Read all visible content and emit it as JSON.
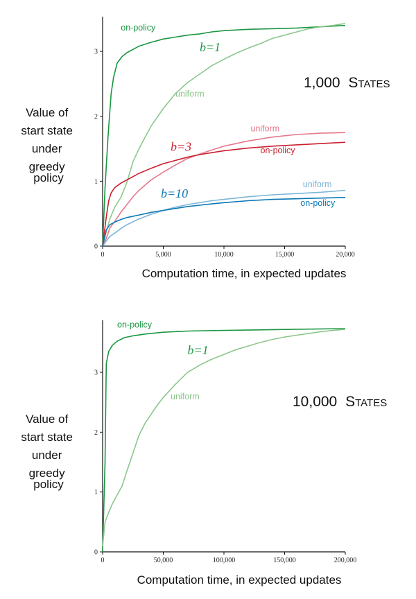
{
  "chart_data": [
    {
      "type": "line",
      "title_number": "1,000",
      "title_caps": "States",
      "xlabel": "Computation time, in expected updates",
      "ylabel_lines": [
        "Value of",
        "start state",
        "under",
        "greedy",
        "policy"
      ],
      "xlim": [
        0,
        20000
      ],
      "ylim": [
        0,
        3.45
      ],
      "xticks": [
        0,
        5000,
        10000,
        15000,
        20000
      ],
      "xtick_labels": [
        "0",
        "5,000",
        "10,000",
        "15,000",
        "20,000"
      ],
      "yticks": [
        0,
        1,
        2,
        3
      ],
      "ytick_labels": [
        "0",
        "1",
        "2",
        "3"
      ],
      "series": [
        {
          "name": "on-policy",
          "b": "b=1",
          "color": "#1a9641",
          "x": [
            0,
            200,
            450,
            700,
            900,
            1200,
            1600,
            2000,
            2500,
            3000,
            3500,
            4000,
            5000,
            6000,
            7000,
            8000,
            9000,
            10000,
            12000,
            14000,
            16000,
            18000,
            20000
          ],
          "y": [
            0,
            0.9,
            1.7,
            2.35,
            2.6,
            2.82,
            2.92,
            2.98,
            3.03,
            3.08,
            3.11,
            3.14,
            3.19,
            3.22,
            3.25,
            3.27,
            3.3,
            3.32,
            3.34,
            3.35,
            3.36,
            3.38,
            3.4
          ]
        },
        {
          "name": "uniform",
          "b": "b=1",
          "color": "#8cc68c",
          "x": [
            0,
            300,
            600,
            1000,
            1500,
            2000,
            2500,
            3000,
            3500,
            4000,
            5000,
            6000,
            7000,
            8000,
            9000,
            10000,
            11000,
            12000,
            13000,
            14000,
            15000,
            16000,
            17000,
            18000,
            19000,
            20000
          ],
          "y": [
            0,
            0.22,
            0.42,
            0.6,
            0.75,
            0.98,
            1.3,
            1.5,
            1.68,
            1.85,
            2.12,
            2.35,
            2.52,
            2.65,
            2.78,
            2.88,
            2.97,
            3.05,
            3.12,
            3.2,
            3.25,
            3.3,
            3.35,
            3.38,
            3.4,
            3.43
          ]
        },
        {
          "name": "uniform",
          "b": "b=3",
          "color": "#e5788a",
          "x": [
            0,
            300,
            600,
            1000,
            1500,
            2000,
            2500,
            3000,
            4000,
            5000,
            6000,
            7000,
            8000,
            9000,
            10000,
            12000,
            14000,
            16000,
            18000,
            20000
          ],
          "y": [
            0,
            0.12,
            0.28,
            0.38,
            0.52,
            0.64,
            0.76,
            0.86,
            1.02,
            1.14,
            1.25,
            1.35,
            1.42,
            1.48,
            1.54,
            1.62,
            1.68,
            1.72,
            1.74,
            1.75
          ]
        },
        {
          "name": "on-policy",
          "b": "b=3",
          "color": "#c8202e",
          "x": [
            0,
            300,
            500,
            700,
            1000,
            1500,
            2000,
            2500,
            3000,
            4000,
            5000,
            6000,
            7000,
            8000,
            9000,
            10000,
            12000,
            14000,
            16000,
            18000,
            20000
          ],
          "y": [
            0,
            0.45,
            0.7,
            0.82,
            0.9,
            0.97,
            1.02,
            1.07,
            1.12,
            1.2,
            1.27,
            1.32,
            1.37,
            1.41,
            1.44,
            1.47,
            1.51,
            1.54,
            1.56,
            1.58,
            1.6
          ]
        },
        {
          "name": "uniform",
          "b": "b=10",
          "color": "#7db5d9",
          "x": [
            0,
            300,
            600,
            1000,
            1500,
            2000,
            3000,
            4000,
            5000,
            6000,
            7000,
            8000,
            9000,
            10000,
            12000,
            14000,
            16000,
            18000,
            20000
          ],
          "y": [
            0,
            0.08,
            0.15,
            0.2,
            0.27,
            0.33,
            0.42,
            0.49,
            0.55,
            0.6,
            0.64,
            0.67,
            0.7,
            0.72,
            0.76,
            0.79,
            0.81,
            0.83,
            0.86
          ]
        },
        {
          "name": "on-policy",
          "b": "b=10",
          "color": "#0b78b4",
          "x": [
            0,
            300,
            600,
            1000,
            1500,
            2000,
            3000,
            4000,
            5000,
            6000,
            7000,
            8000,
            9000,
            10000,
            12000,
            14000,
            16000,
            18000,
            20000
          ],
          "y": [
            0,
            0.25,
            0.33,
            0.37,
            0.41,
            0.44,
            0.48,
            0.52,
            0.55,
            0.58,
            0.61,
            0.63,
            0.65,
            0.67,
            0.7,
            0.72,
            0.73,
            0.74,
            0.75
          ]
        }
      ],
      "annotations": [
        {
          "text": "on-policy",
          "color": "#1a9641",
          "x": 1500,
          "y": 3.32,
          "kind": "series"
        },
        {
          "text": "b=1",
          "color": "#1a9641",
          "x": 8000,
          "y": 3.0,
          "kind": "b"
        },
        {
          "text": "uniform",
          "color": "#8cc68c",
          "x": 6000,
          "y": 2.3,
          "kind": "series"
        },
        {
          "text": "uniform",
          "color": "#e5788a",
          "x": 12200,
          "y": 1.77,
          "kind": "series"
        },
        {
          "text": "b=3",
          "color": "#c8202e",
          "x": 5600,
          "y": 1.47,
          "kind": "b"
        },
        {
          "text": "on-policy",
          "color": "#c8202e",
          "x": 13000,
          "y": 1.43,
          "kind": "series"
        },
        {
          "text": "uniform",
          "color": "#7db5d9",
          "x": 16500,
          "y": 0.91,
          "kind": "series"
        },
        {
          "text": "b=10",
          "color": "#0b78b4",
          "x": 4800,
          "y": 0.75,
          "kind": "b"
        },
        {
          "text": "on-policy",
          "color": "#0b78b4",
          "x": 16300,
          "y": 0.62,
          "kind": "series"
        }
      ]
    },
    {
      "type": "line",
      "title_number": "10,000",
      "title_caps": "States",
      "xlabel": "Computation time, in expected updates",
      "ylabel_lines": [
        "Value of",
        "start state",
        "under",
        "greedy",
        "policy"
      ],
      "xlim": [
        0,
        200000
      ],
      "ylim": [
        0,
        3.8
      ],
      "xticks": [
        0,
        50000,
        100000,
        150000,
        200000
      ],
      "xtick_labels": [
        "0",
        "50,000",
        "100,000",
        "150,000",
        "200,000"
      ],
      "yticks": [
        0,
        1,
        2,
        3
      ],
      "ytick_labels": [
        "0",
        "1",
        "2",
        "3"
      ],
      "series": [
        {
          "name": "on-policy",
          "b": "b=1",
          "color": "#1a9641",
          "x": [
            0,
            2000,
            3000,
            5000,
            8000,
            12000,
            18000,
            25000,
            35000,
            50000,
            70000,
            100000,
            130000,
            160000,
            200000
          ],
          "y": [
            0,
            1.5,
            3.15,
            3.35,
            3.45,
            3.52,
            3.58,
            3.61,
            3.64,
            3.67,
            3.69,
            3.7,
            3.71,
            3.72,
            3.73
          ]
        },
        {
          "name": "uniform",
          "b": "b=1",
          "color": "#8cc68c",
          "x": [
            0,
            2000,
            5000,
            8000,
            12000,
            16000,
            20000,
            25000,
            30000,
            35000,
            40000,
            45000,
            50000,
            60000,
            70000,
            80000,
            90000,
            100000,
            110000,
            120000,
            130000,
            140000,
            150000,
            160000,
            170000,
            180000,
            190000,
            200000
          ],
          "y": [
            0.1,
            0.5,
            0.66,
            0.8,
            0.95,
            1.1,
            1.35,
            1.65,
            1.95,
            2.15,
            2.3,
            2.45,
            2.58,
            2.8,
            3.0,
            3.12,
            3.22,
            3.3,
            3.38,
            3.44,
            3.5,
            3.55,
            3.59,
            3.62,
            3.65,
            3.68,
            3.7,
            3.72
          ]
        }
      ],
      "annotations": [
        {
          "text": "on-policy",
          "color": "#1a9641",
          "x": 12000,
          "y": 3.75,
          "kind": "series"
        },
        {
          "text": "b=1",
          "color": "#1a9641",
          "x": 70000,
          "y": 3.3,
          "kind": "b"
        },
        {
          "text": "uniform",
          "color": "#8cc68c",
          "x": 56000,
          "y": 2.55,
          "kind": "series"
        }
      ]
    }
  ]
}
